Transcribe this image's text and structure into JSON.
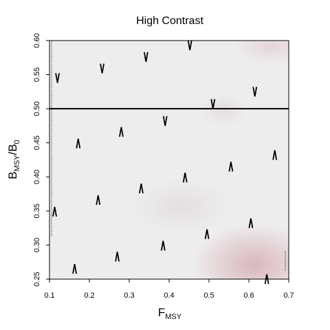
{
  "chart_data": {
    "type": "vector-field",
    "title": "High Contrast",
    "xlabel": {
      "main": "F",
      "sub": "MSY"
    },
    "ylabel": {
      "main": "B",
      "sub1": "MSY",
      "sep": "/B",
      "sub2": "0"
    },
    "xlim": [
      0.1,
      0.7
    ],
    "ylim": [
      0.25,
      0.6
    ],
    "xticks": [
      0.1,
      0.2,
      0.3,
      0.4,
      0.5,
      0.6,
      0.7
    ],
    "xtick_labels": [
      "0.1",
      "0.2",
      "0.3",
      "0.4",
      "0.5",
      "0.6",
      "0.7"
    ],
    "yticks": [
      0.25,
      0.3,
      0.35,
      0.4,
      0.45,
      0.5,
      0.55,
      0.6
    ],
    "ytick_labels": [
      "0.25",
      "0.30",
      "0.35",
      "0.40",
      "0.45",
      "0.50",
      "0.55",
      "0.60"
    ],
    "reference_line": {
      "y": 0.5,
      "color": "#000000"
    },
    "background": {
      "base_color": "#ededed",
      "accent_color": "#c98a96"
    },
    "arrows": [
      {
        "x": 0.12,
        "y": 0.545,
        "dir": "down"
      },
      {
        "x": 0.232,
        "y": 0.559,
        "dir": "down"
      },
      {
        "x": 0.342,
        "y": 0.576,
        "dir": "down"
      },
      {
        "x": 0.452,
        "y": 0.593,
        "dir": "down"
      },
      {
        "x": 0.615,
        "y": 0.525,
        "dir": "down"
      },
      {
        "x": 0.51,
        "y": 0.507,
        "dir": "down"
      },
      {
        "x": 0.39,
        "y": 0.482,
        "dir": "down"
      },
      {
        "x": 0.28,
        "y": 0.466,
        "dir": "up"
      },
      {
        "x": 0.172,
        "y": 0.449,
        "dir": "up"
      },
      {
        "x": 0.665,
        "y": 0.432,
        "dir": "up"
      },
      {
        "x": 0.555,
        "y": 0.415,
        "dir": "up"
      },
      {
        "x": 0.44,
        "y": 0.399,
        "dir": "up"
      },
      {
        "x": 0.33,
        "y": 0.383,
        "dir": "up"
      },
      {
        "x": 0.222,
        "y": 0.366,
        "dir": "up"
      },
      {
        "x": 0.113,
        "y": 0.349,
        "dir": "up"
      },
      {
        "x": 0.605,
        "y": 0.332,
        "dir": "up"
      },
      {
        "x": 0.495,
        "y": 0.316,
        "dir": "up"
      },
      {
        "x": 0.385,
        "y": 0.299,
        "dir": "up"
      },
      {
        "x": 0.27,
        "y": 0.283,
        "dir": "up"
      },
      {
        "x": 0.163,
        "y": 0.265,
        "dir": "up"
      },
      {
        "x": 0.645,
        "y": 0.25,
        "dir": "up"
      }
    ]
  }
}
